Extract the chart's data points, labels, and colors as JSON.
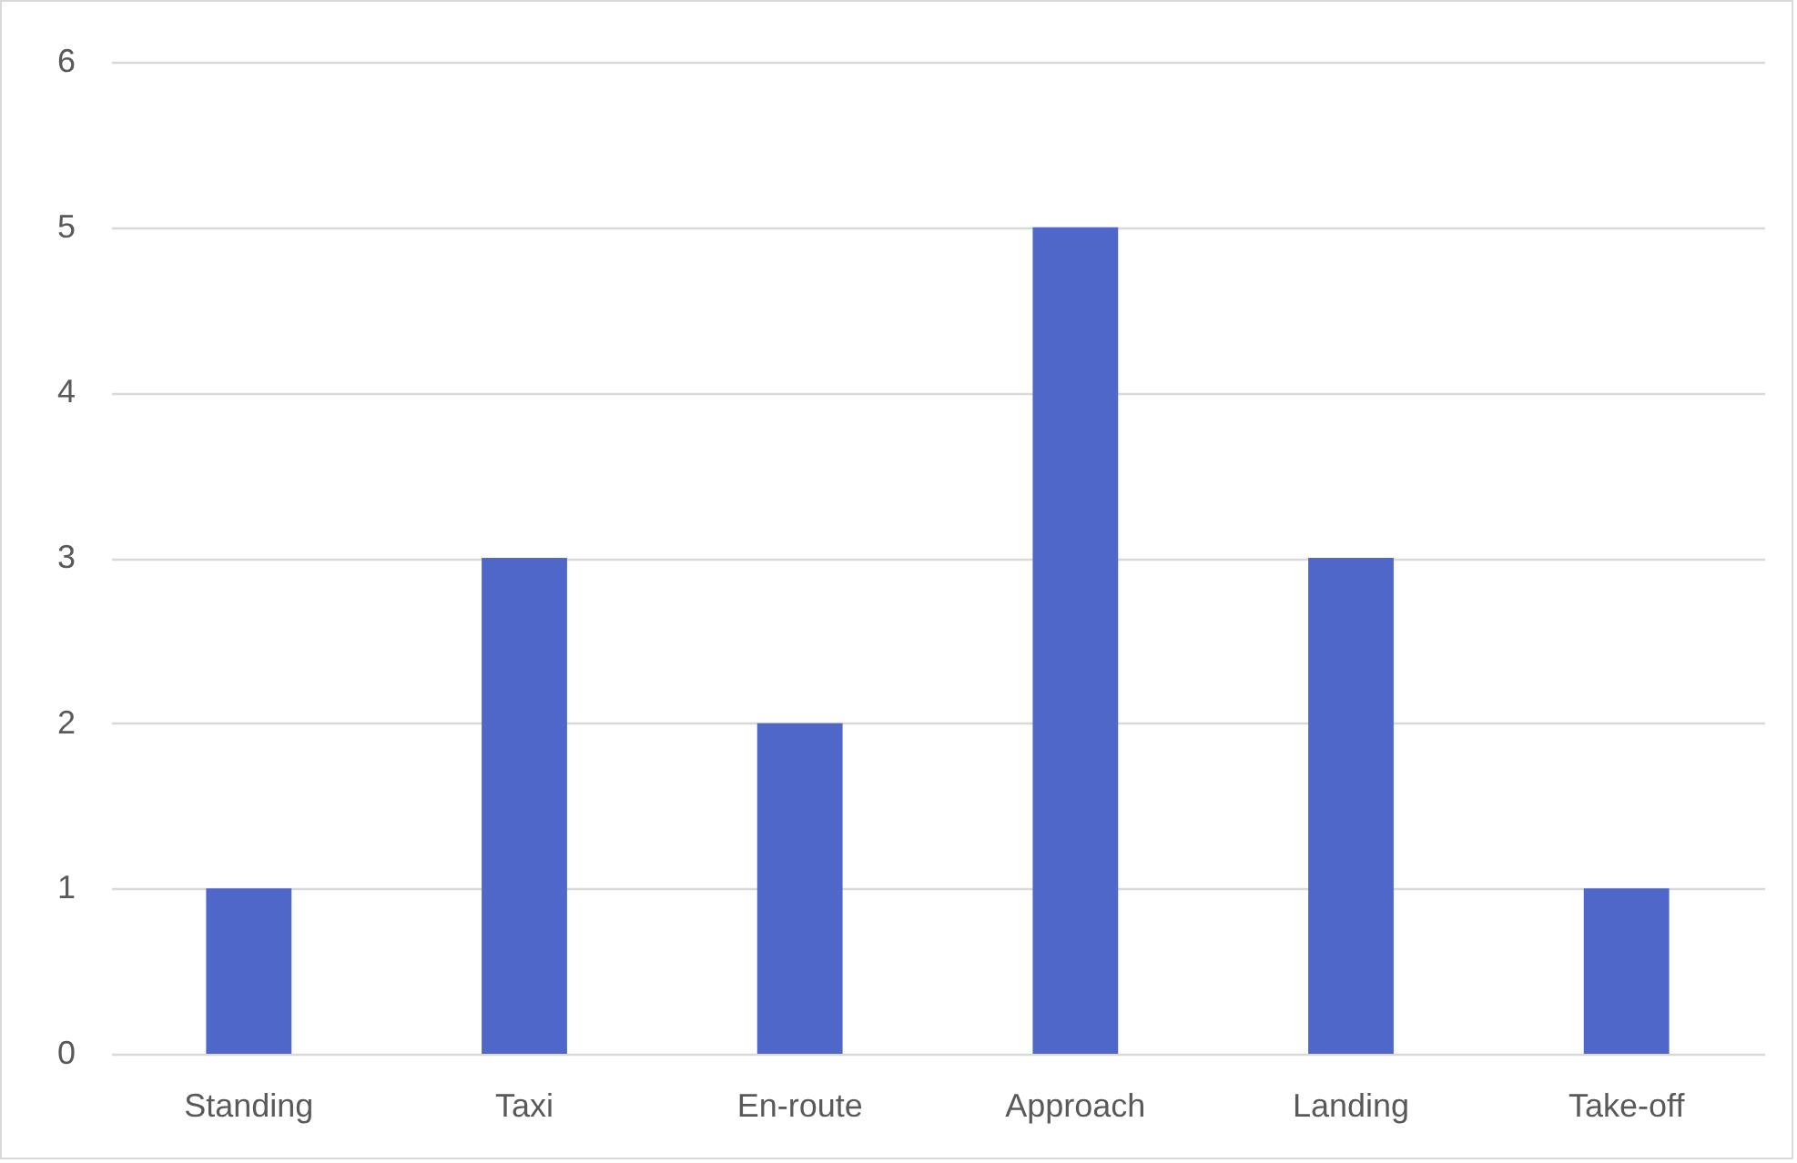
{
  "chart_data": {
    "type": "bar",
    "categories": [
      "Standing",
      "Taxi",
      "En-route",
      "Approach",
      "Landing",
      "Take-off"
    ],
    "values": [
      1,
      3,
      2,
      5,
      3,
      1
    ],
    "color": "#4f67c9",
    "ylim": [
      0,
      6
    ],
    "yticks": [
      0,
      1,
      2,
      3,
      4,
      5,
      6
    ],
    "grid": "y"
  }
}
